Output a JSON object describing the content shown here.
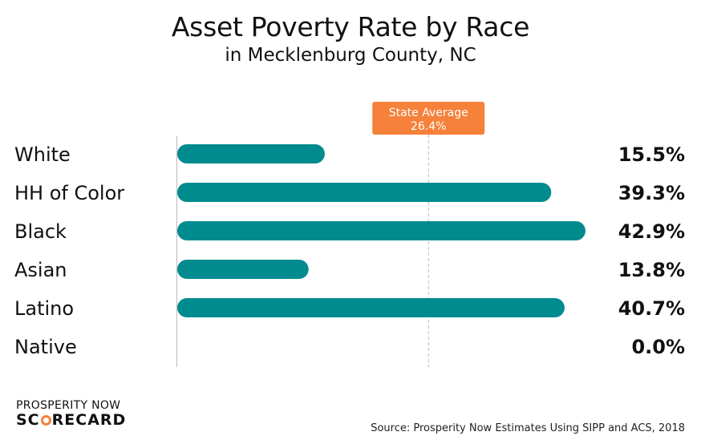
{
  "title": "Asset Poverty Rate by Race",
  "subtitle": "in Mecklenburg County, NC",
  "chart_data": {
    "type": "bar",
    "orientation": "horizontal",
    "title": "Asset Poverty Rate by Race",
    "subtitle": "in Mecklenburg County, NC",
    "categories": [
      "White",
      "HH of Color",
      "Black",
      "Asian",
      "Latino",
      "Native"
    ],
    "values": [
      15.5,
      39.3,
      42.9,
      13.8,
      40.7,
      0.0
    ],
    "value_labels": [
      "15.5%",
      "39.3%",
      "42.9%",
      "13.8%",
      "40.7%",
      "0.0%"
    ],
    "xlim": [
      0,
      42.9
    ],
    "bar_color": "#008b8f",
    "reference_line": {
      "label": "State Average",
      "value": 26.4,
      "value_label": "26.4%",
      "color": "#f5813a"
    },
    "grid": false,
    "legend": "none"
  },
  "logo": {
    "line1": "PROSPERITY NOW",
    "line2_a": "SC",
    "line2_b": "RECARD"
  },
  "source": "Source: Prosperity Now Estimates Using SIPP and ACS, 2018"
}
